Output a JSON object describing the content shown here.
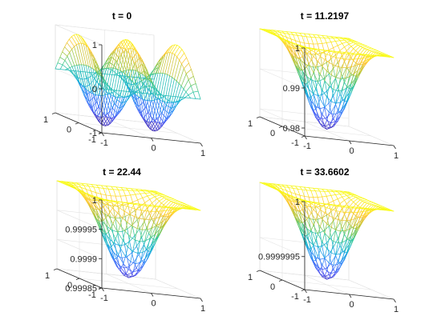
{
  "chart_data": [
    {
      "type": "surface",
      "title": "t = 0",
      "x": {
        "range": [
          -1,
          1
        ],
        "ticks": [
          {
            "v": -1,
            "label": "-1"
          },
          {
            "v": 0,
            "label": "0"
          },
          {
            "v": 1,
            "label": "1"
          }
        ]
      },
      "y": {
        "range": [
          -1,
          1
        ],
        "ticks": [
          {
            "v": -1,
            "label": "-1"
          },
          {
            "v": 0,
            "label": "0"
          },
          {
            "v": 1,
            "label": "1"
          }
        ]
      },
      "z": {
        "range": [
          -1,
          1
        ],
        "ticks": [
          {
            "v": -1,
            "label": "-1"
          },
          {
            "v": 0,
            "label": "0"
          },
          {
            "v": 1,
            "label": "1"
          }
        ]
      },
      "surface": {
        "kind": "oscillating",
        "fx": 2,
        "fy": 0.5,
        "center": 0,
        "amplitude": 1
      },
      "grid_lines": 21,
      "colormap": "parula"
    },
    {
      "type": "surface",
      "title": "t = 11.2197",
      "x": {
        "range": [
          -1,
          1
        ],
        "ticks": [
          {
            "v": -1,
            "label": "-1"
          },
          {
            "v": 0,
            "label": "0"
          },
          {
            "v": 1,
            "label": "1"
          }
        ]
      },
      "y": {
        "range": [
          -1,
          1
        ],
        "ticks": [
          {
            "v": -1,
            "label": "-1"
          },
          {
            "v": 0,
            "label": "0"
          },
          {
            "v": 1,
            "label": "1"
          }
        ]
      },
      "z": {
        "range": [
          0.978,
          1
        ],
        "ticks": [
          {
            "v": 0.98,
            "label": "0.98"
          },
          {
            "v": 0.99,
            "label": "0.99"
          },
          {
            "v": 1,
            "label": "1"
          }
        ]
      },
      "surface": {
        "kind": "bowl",
        "top": 1,
        "bottom": 0.9785
      },
      "grid_lines": 21,
      "colormap": "parula"
    },
    {
      "type": "surface",
      "title": "t = 22.44",
      "x": {
        "range": [
          -1,
          1
        ],
        "ticks": [
          {
            "v": -1,
            "label": "-1"
          },
          {
            "v": 0,
            "label": "0"
          },
          {
            "v": 1,
            "label": "1"
          }
        ]
      },
      "y": {
        "range": [
          -1,
          1
        ],
        "ticks": [
          {
            "v": -1,
            "label": "-1"
          },
          {
            "v": 0,
            "label": "0"
          },
          {
            "v": 1,
            "label": "1"
          }
        ]
      },
      "z": {
        "range": [
          0.99985,
          1
        ],
        "ticks": [
          {
            "v": 0.99985,
            "label": "0.99985"
          },
          {
            "v": 0.9999,
            "label": "0.9999"
          },
          {
            "v": 0.99995,
            "label": "0.99995"
          },
          {
            "v": 1,
            "label": "1"
          }
        ]
      },
      "surface": {
        "kind": "bowl",
        "top": 1,
        "bottom": 0.99986
      },
      "grid_lines": 21,
      "colormap": "parula"
    },
    {
      "type": "surface",
      "title": "t = 33.6602",
      "x": {
        "range": [
          -1,
          1
        ],
        "ticks": [
          {
            "v": -1,
            "label": "-1"
          },
          {
            "v": 0,
            "label": "0"
          },
          {
            "v": 1,
            "label": "1"
          }
        ]
      },
      "y": {
        "range": [
          -1,
          1
        ],
        "ticks": [
          {
            "v": -1,
            "label": "-1"
          },
          {
            "v": 0,
            "label": "0"
          },
          {
            "v": 1,
            "label": "1"
          }
        ]
      },
      "z": {
        "range": [
          0.9999992,
          1
        ],
        "ticks": [
          {
            "v": 0.9999995,
            "label": "0.9999995"
          },
          {
            "v": 1,
            "label": "1"
          }
        ]
      },
      "surface": {
        "kind": "bowl",
        "top": 1,
        "bottom": 0.99999925
      },
      "grid_lines": 21,
      "colormap": "parula"
    }
  ]
}
